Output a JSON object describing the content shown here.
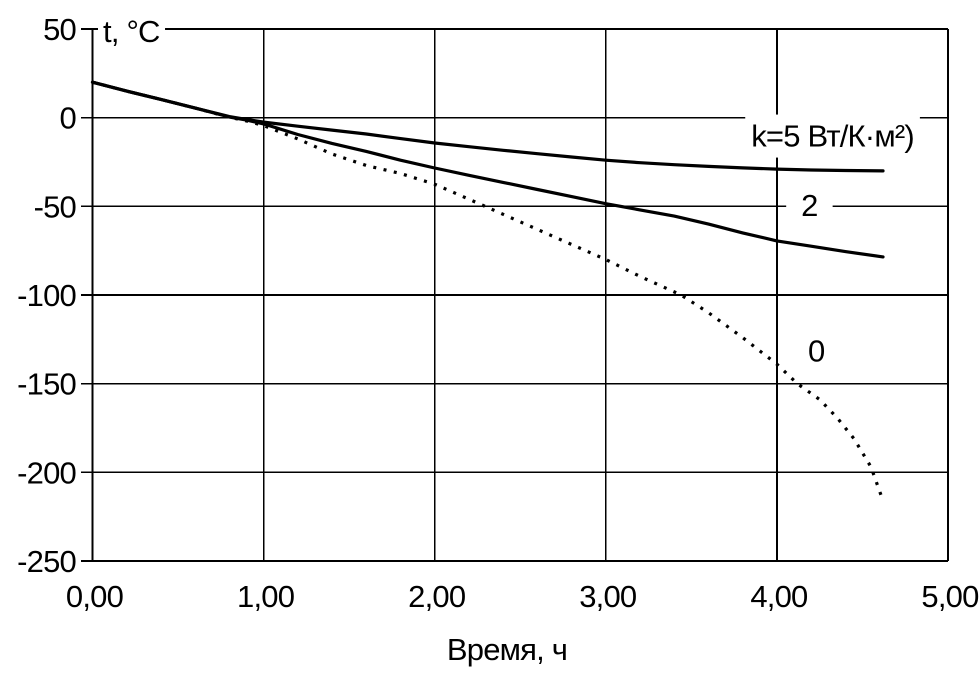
{
  "chart_data": {
    "type": "line",
    "title": "",
    "xlabel": "Время, ч",
    "ylabel": "t, °C",
    "xlim": [
      0,
      5
    ],
    "ylim": [
      -250,
      50
    ],
    "grid": true,
    "legend_position": "inline-curve-labels",
    "background": "#ffffff",
    "line_color": "#000000",
    "xticks": [
      {
        "value": 0,
        "label": "0,00"
      },
      {
        "value": 1,
        "label": "1,00"
      },
      {
        "value": 2,
        "label": "2,00"
      },
      {
        "value": 3,
        "label": "3,00"
      },
      {
        "value": 4,
        "label": "4,00"
      },
      {
        "value": 5,
        "label": "5,00"
      }
    ],
    "yticks": [
      {
        "value": 50,
        "label": "50"
      },
      {
        "value": 0,
        "label": "0"
      },
      {
        "value": -50,
        "label": "-50"
      },
      {
        "value": -100,
        "label": "-100"
      },
      {
        "value": -150,
        "label": "-150"
      },
      {
        "value": -200,
        "label": "-200"
      },
      {
        "value": -250,
        "label": "-250"
      }
    ],
    "series": [
      {
        "id": "k5",
        "name": "k=5 Вт/(К·м²)",
        "k": 5,
        "style": "solid",
        "points": [
          [
            0,
            20
          ],
          [
            0.2,
            15
          ],
          [
            0.4,
            10.3
          ],
          [
            0.6,
            5.4
          ],
          [
            0.8,
            0.6
          ],
          [
            0.9,
            -1
          ],
          [
            1.0,
            -2.5
          ],
          [
            1.2,
            -4.8
          ],
          [
            1.4,
            -7
          ],
          [
            1.6,
            -9.2
          ],
          [
            1.8,
            -11.8
          ],
          [
            2.0,
            -14.3
          ],
          [
            2.2,
            -16.4
          ],
          [
            2.4,
            -18.4
          ],
          [
            2.6,
            -20.3
          ],
          [
            2.8,
            -22.2
          ],
          [
            3.0,
            -24
          ],
          [
            3.2,
            -25.4
          ],
          [
            3.4,
            -26.5
          ],
          [
            3.6,
            -27.5
          ],
          [
            3.8,
            -28.3
          ],
          [
            4.0,
            -29
          ],
          [
            4.2,
            -29.5
          ],
          [
            4.4,
            -29.8
          ],
          [
            4.62,
            -30
          ]
        ]
      },
      {
        "id": "k2",
        "name": "k=2 Вт/(К·м²)",
        "k": 2,
        "style": "solid",
        "points": [
          [
            0,
            20
          ],
          [
            0.2,
            15
          ],
          [
            0.4,
            10.3
          ],
          [
            0.6,
            5.4
          ],
          [
            0.8,
            0.4
          ],
          [
            0.9,
            -1.4
          ],
          [
            1.0,
            -3.5
          ],
          [
            1.2,
            -9.5
          ],
          [
            1.4,
            -14.5
          ],
          [
            1.6,
            -19
          ],
          [
            1.8,
            -24
          ],
          [
            2.0,
            -28.4
          ],
          [
            2.2,
            -32.5
          ],
          [
            2.4,
            -36.5
          ],
          [
            2.6,
            -40.5
          ],
          [
            2.8,
            -44.5
          ],
          [
            3.0,
            -48.5
          ],
          [
            3.2,
            -52
          ],
          [
            3.4,
            -55.5
          ],
          [
            3.6,
            -60
          ],
          [
            3.8,
            -65
          ],
          [
            4.0,
            -69.5
          ],
          [
            4.2,
            -72.5
          ],
          [
            4.4,
            -75.5
          ],
          [
            4.62,
            -78.5
          ]
        ]
      },
      {
        "id": "k0",
        "name": "k=0 Вт/(К·м²)",
        "k": 0,
        "style": "dotted",
        "points": [
          [
            0,
            20
          ],
          [
            0.2,
            15
          ],
          [
            0.4,
            10.3
          ],
          [
            0.6,
            5.4
          ],
          [
            0.8,
            0.2
          ],
          [
            0.9,
            -1.8
          ],
          [
            1.0,
            -4.5
          ],
          [
            1.2,
            -12
          ],
          [
            1.4,
            -20.5
          ],
          [
            1.6,
            -27
          ],
          [
            1.8,
            -31.5
          ],
          [
            2.0,
            -37.5
          ],
          [
            2.2,
            -46
          ],
          [
            2.4,
            -54.5
          ],
          [
            2.6,
            -63
          ],
          [
            2.8,
            -71.5
          ],
          [
            3.0,
            -80
          ],
          [
            3.2,
            -89.5
          ],
          [
            3.44,
            -100
          ],
          [
            3.6,
            -110
          ],
          [
            3.8,
            -124
          ],
          [
            4.0,
            -139
          ],
          [
            4.12,
            -150
          ],
          [
            4.25,
            -159
          ],
          [
            4.35,
            -169
          ],
          [
            4.45,
            -181
          ],
          [
            4.55,
            -197
          ],
          [
            4.62,
            -216
          ]
        ]
      }
    ],
    "annotations": [
      {
        "series": "k5",
        "text": "k=5 Вт/К·м²)",
        "x": 3.85,
        "y": -16.3,
        "anchor": "start"
      },
      {
        "series": "k2",
        "text": "2",
        "x": 4.19,
        "y": -55.5,
        "anchor": "middle"
      },
      {
        "series": "k0",
        "text": "0",
        "x": 4.23,
        "y": -137.5,
        "anchor": "middle"
      }
    ]
  }
}
